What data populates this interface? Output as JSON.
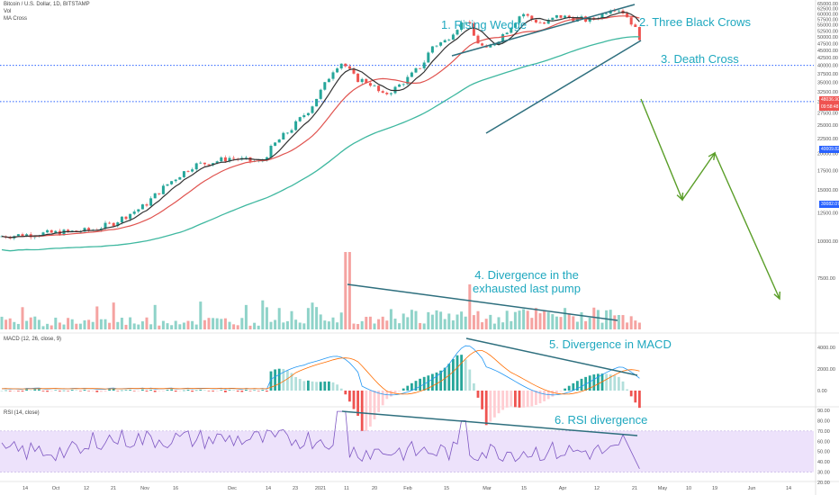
{
  "header": {
    "symbol": "Bitcoin / U.S. Dollar, 1D, BITSTAMP",
    "vol_label": "Vol",
    "ma_label": "MA Cross"
  },
  "annotations": {
    "a1": "1. Rising Wedge",
    "a2": "2. Three Black Crows",
    "a3": "3. Death Cross",
    "a4_line1": "4. Divergence in the",
    "a4_line2": "exhausted last pump",
    "a5": "5. Divergence in MACD",
    "a6": "6. RSI divergence"
  },
  "panes": {
    "macd_label": "MACD (12, 26, close, 9)",
    "rsi_label": "RSI (14, close)"
  },
  "price_tags": {
    "current": "48036.90",
    "countdown": "09:58:48",
    "level_40k": "40009.82",
    "level_30k": "30082.07"
  },
  "colors": {
    "up": "#26a69a",
    "down": "#ef5350",
    "annotation": "#1fa8bf",
    "trendline": "#2e6f7e",
    "projection": "#5a9e28",
    "level": "#2962ff",
    "rsi_band": "#ede2fb",
    "rsi_line": "#7e57c2"
  },
  "chart_data": [
    {
      "type": "candlestick",
      "yscale": "log",
      "ylim": [
        5000,
        66000
      ],
      "price_ticks": [
        65000,
        62500,
        60000,
        57500,
        55000,
        52500,
        50000,
        47500,
        45000,
        42500,
        40000,
        37500,
        35000,
        32500,
        30000,
        27500,
        25000,
        22500,
        20000,
        17500,
        15000,
        12500,
        10000,
        7500
      ],
      "x_ticks": [
        "14",
        "Oct",
        "12",
        "21",
        "Nov",
        "16",
        "Dec",
        "14",
        "23",
        "2021",
        "11",
        "20",
        "Feb",
        "15",
        "Mar",
        "15",
        "Apr",
        "12",
        "21",
        "May",
        "10",
        "19",
        "Jun",
        "14"
      ],
      "horizontal_levels": [
        40009.82,
        30082.07
      ],
      "last_price": 48036.9
    },
    {
      "type": "bar",
      "name": "Vol",
      "y_ticks": []
    },
    {
      "type": "line",
      "name": "MACD (12, 26, close, 9)",
      "y_ticks": [
        4000,
        2000,
        0
      ]
    },
    {
      "type": "line",
      "name": "RSI (14, close)",
      "y_ticks": [
        90,
        80,
        70,
        60,
        50,
        40,
        30,
        20
      ],
      "ylim": [
        20,
        90
      ]
    }
  ]
}
